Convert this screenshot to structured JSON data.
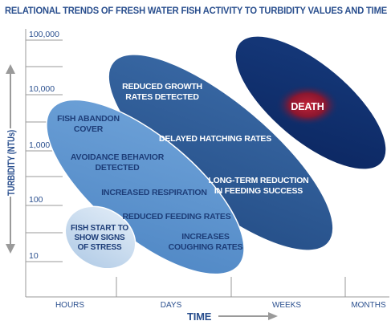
{
  "title": "RELATIONAL TRENDS OF FRESH WATER FISH ACTIVITY TO TURBIDITY VALUES AND TIME",
  "y_axis": {
    "label": "TURBIDITY (NTUs)",
    "ticks": [
      "100,000",
      "10,000",
      "1,000",
      "100",
      "10"
    ]
  },
  "x_axis": {
    "label": "TIME",
    "ticks": [
      "HOURS",
      "DAYS",
      "WEEKS",
      "MONTHS"
    ]
  },
  "zones": [
    {
      "id": "stress",
      "lines": [
        "FISH START TO",
        "SHOW SIGNS",
        "OF STRESS"
      ],
      "fill": "#c4d9ee"
    },
    {
      "id": "behavior",
      "fill": "#5b93cf",
      "labels": [
        [
          "FISH ABANDON",
          "COVER"
        ],
        [
          "AVOIDANCE BEHAVIOR",
          "DETECTED"
        ],
        [
          "INCREASED RESPIRATION"
        ],
        [
          "REDUCED FEEDING RATES"
        ],
        [
          "INCREASES",
          "COUGHING RATES"
        ]
      ]
    },
    {
      "id": "growth",
      "fill": "#2e5a94",
      "labels": [
        [
          "REDUCED GROWTH",
          "RATES DETECTED"
        ],
        [
          "DELAYED HATCHING RATES"
        ],
        [
          "LONG-TERM REDUCTION",
          "IN FEEDING SUCCESS"
        ]
      ]
    },
    {
      "id": "death",
      "fill": "#0f2f6c",
      "labels": [
        [
          "DEATH"
        ]
      ],
      "highlight": "#9c1a2c"
    }
  ],
  "colors": {
    "title": "#2a4f8e",
    "axis": "#2a4f8e",
    "grid": "#9a9a9a",
    "text_dark": "#1d3d78",
    "text_light": "#ffffff"
  }
}
